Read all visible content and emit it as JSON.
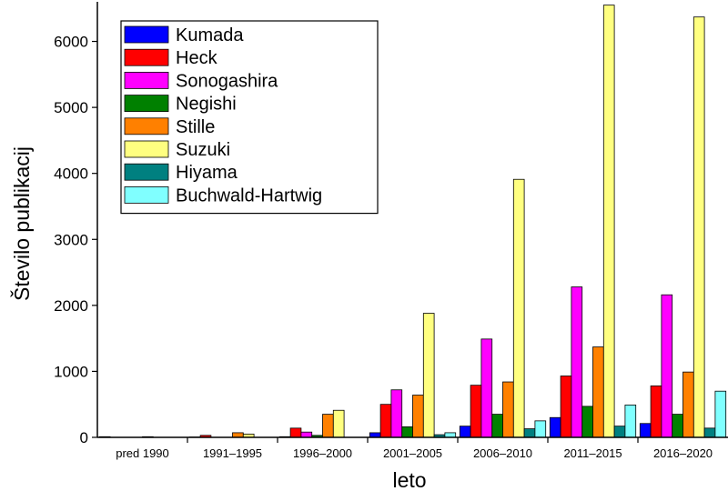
{
  "chart_data": {
    "type": "bar",
    "xlabel": "leto",
    "ylabel": "Število publikacij",
    "ylim": [
      0,
      6600
    ],
    "yticks": [
      0,
      1000,
      2000,
      3000,
      4000,
      5000,
      6000
    ],
    "categories": [
      "pred 1990",
      "1991–1995",
      "1996–2000",
      "2001–2005",
      "2006–2010",
      "2011–2015",
      "2016–2020"
    ],
    "legend_position": "top-left",
    "grid": false,
    "series": [
      {
        "name": "Kumada",
        "color": "#0000ff",
        "values": [
          10,
          5,
          10,
          70,
          170,
          300,
          210
        ]
      },
      {
        "name": "Heck",
        "color": "#ff0000",
        "values": [
          0,
          30,
          140,
          500,
          790,
          930,
          780
        ]
      },
      {
        "name": "Sonogashira",
        "color": "#ff00ff",
        "values": [
          0,
          0,
          80,
          720,
          1490,
          2280,
          2160
        ]
      },
      {
        "name": "Negishi",
        "color": "#008000",
        "values": [
          0,
          0,
          30,
          160,
          350,
          470,
          350
        ]
      },
      {
        "name": "Stille",
        "color": "#ff8000",
        "values": [
          10,
          70,
          350,
          640,
          840,
          1370,
          990
        ]
      },
      {
        "name": "Suzuki",
        "color": "#ffff80",
        "values": [
          0,
          50,
          410,
          1880,
          3910,
          6550,
          6370
        ]
      },
      {
        "name": "Hiyama",
        "color": "#008080",
        "values": [
          0,
          0,
          0,
          40,
          130,
          170,
          140
        ]
      },
      {
        "name": "Buchwald-Hartwig",
        "color": "#80ffff",
        "values": [
          0,
          0,
          0,
          70,
          250,
          490,
          700
        ]
      }
    ]
  }
}
